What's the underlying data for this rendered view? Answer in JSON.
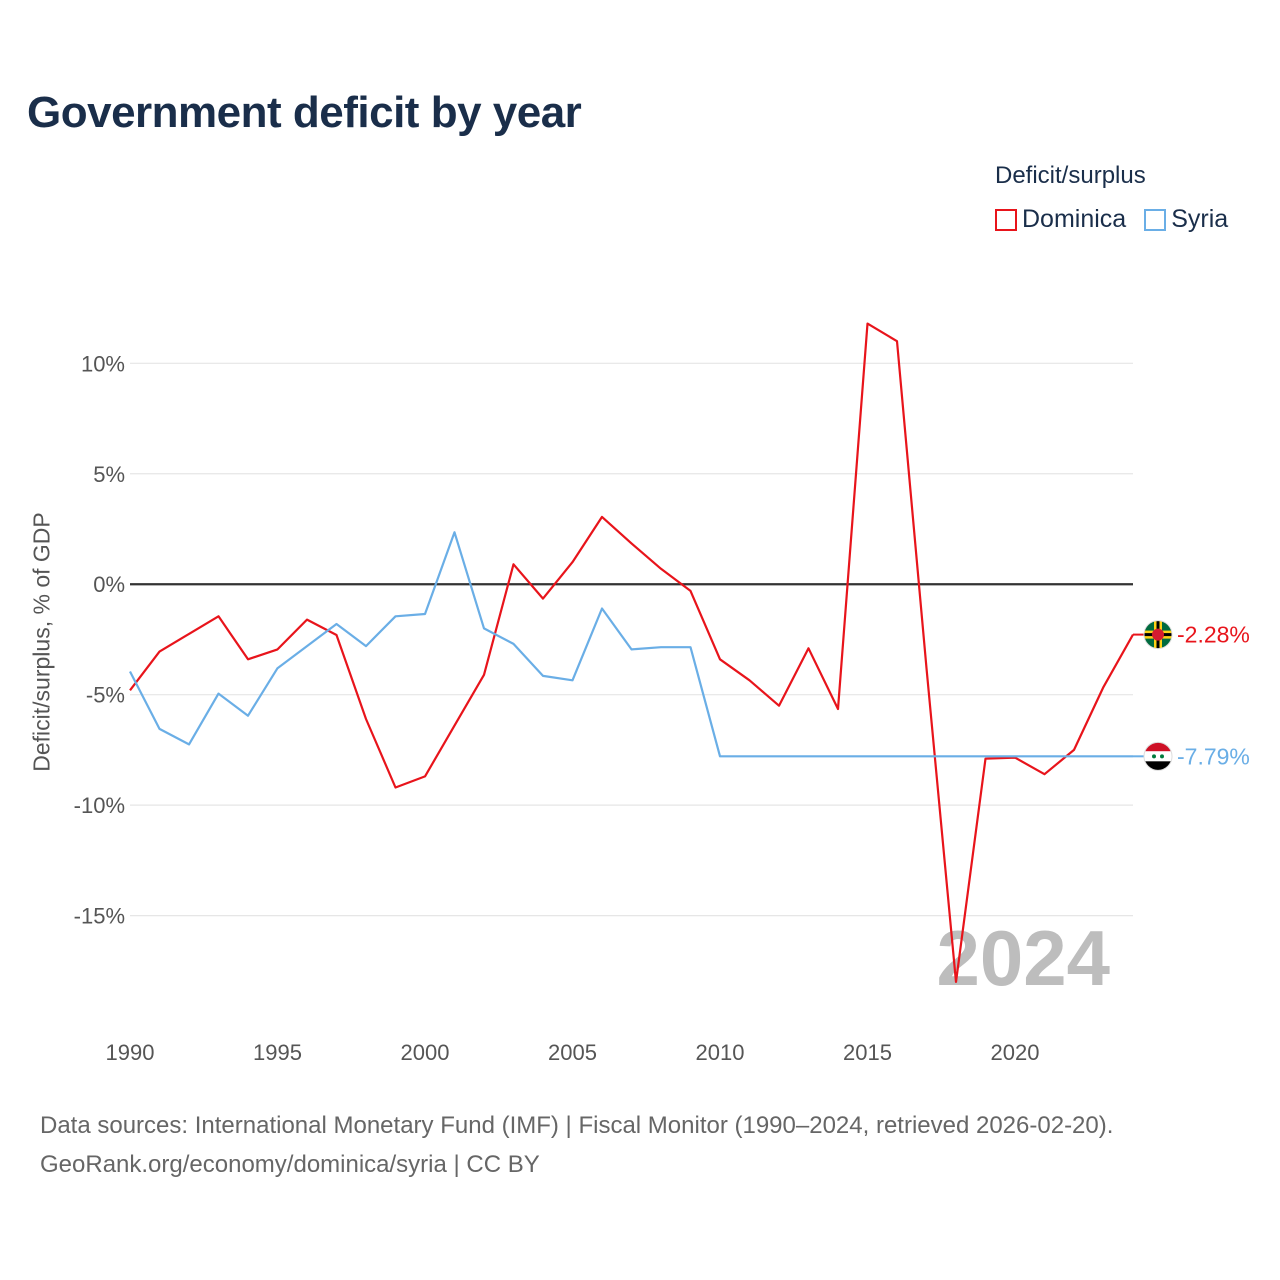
{
  "chart_data": {
    "type": "line",
    "title": "Government deficit by year",
    "ylabel": "Deficit/surplus, % of GDP",
    "xlabel": "",
    "legend_title": "Deficit/surplus",
    "legend_position": "top-right",
    "xlim": [
      1990,
      2024
    ],
    "ylim": [
      -19.5,
      13.5
    ],
    "x_ticks": [
      1990,
      1995,
      2000,
      2005,
      2010,
      2015,
      2020
    ],
    "y_ticks": [
      {
        "value": 10,
        "label": "10%"
      },
      {
        "value": 5,
        "label": "5%"
      },
      {
        "value": 0,
        "label": "0%"
      },
      {
        "value": -5,
        "label": "-5%"
      },
      {
        "value": -10,
        "label": "-10%"
      },
      {
        "value": -15,
        "label": "-15%"
      }
    ],
    "year_label": "2024",
    "x": [
      1990,
      1991,
      1992,
      1993,
      1994,
      1995,
      1996,
      1997,
      1998,
      1999,
      2000,
      2001,
      2002,
      2003,
      2004,
      2005,
      2006,
      2007,
      2008,
      2009,
      2010,
      2011,
      2012,
      2013,
      2014,
      2015,
      2016,
      2017,
      2018,
      2019,
      2020,
      2021,
      2022,
      2023,
      2024
    ],
    "series": [
      {
        "name": "Dominica",
        "color": "#e8141b",
        "end_label": "-2.28%",
        "flag_icon": "dominica-flag-icon",
        "values": [
          -4.8,
          -3.05,
          -2.25,
          -1.45,
          -3.4,
          -2.95,
          -1.6,
          -2.3,
          -6.1,
          -9.2,
          -8.7,
          -6.4,
          -4.1,
          0.9,
          -0.65,
          1.0,
          3.05,
          1.85,
          0.7,
          -0.3,
          -3.4,
          -4.35,
          -5.5,
          -2.9,
          -5.65,
          11.8,
          11.0,
          -3.8,
          -18.0,
          -7.9,
          -7.85,
          -8.6,
          -7.5,
          -4.65,
          -2.28
        ]
      },
      {
        "name": "Syria",
        "color": "#6aaee6",
        "end_label": "-7.79%",
        "flag_icon": "syria-flag-icon",
        "values": [
          -3.95,
          -6.55,
          -7.25,
          -4.95,
          -5.95,
          -3.8,
          -2.8,
          -1.8,
          -2.8,
          -1.45,
          -1.35,
          2.35,
          -2.0,
          -2.7,
          -4.15,
          -4.35,
          -1.1,
          -2.95,
          -2.85,
          -2.85,
          -7.79,
          -7.79,
          -7.79,
          -7.79,
          -7.79,
          -7.79,
          -7.79,
          -7.79,
          -7.79,
          -7.79,
          -7.79,
          -7.79,
          -7.79,
          -7.79,
          -7.79
        ]
      }
    ]
  },
  "footer": {
    "line1": "Data sources: International Monetary Fund (IMF) | Fiscal Monitor (1990–2024, retrieved 2026-02-20).",
    "line2": "GeoRank.org/economy/dominica/syria | CC BY"
  }
}
